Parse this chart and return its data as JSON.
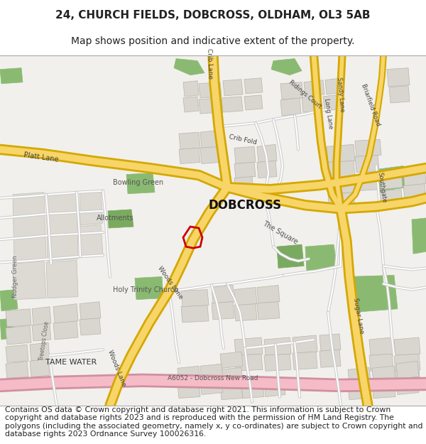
{
  "title_line1": "24, CHURCH FIELDS, DOBCROSS, OLDHAM, OL3 5AB",
  "title_line2": "Map shows position and indicative extent of the property.",
  "footer_text": "Contains OS data © Crown copyright and database right 2021. This information is subject to Crown copyright and database rights 2023 and is reproduced with the permission of HM Land Registry. The polygons (including the associated geometry, namely x, y co-ordinates) are subject to Crown copyright and database rights 2023 Ordnance Survey 100026316.",
  "map_bg": "#f2f0ec",
  "road_yellow_fill": "#f7d568",
  "road_yellow_border": "#d4a800",
  "road_minor_fill": "#ffffff",
  "road_minor_border": "#cccccc",
  "building_color": "#d9d6cf",
  "building_stroke": "#b8b5ae",
  "green_dark": "#8aba72",
  "green_mid": "#7aaa60",
  "pink_road_fill": "#f5bcc8",
  "pink_road_border": "#d090a0",
  "red_outline": "#cc0000",
  "text_dark": "#222222",
  "text_label": "#555555",
  "text_road": "#444444",
  "title_fontsize": 11,
  "subtitle_fontsize": 10,
  "footer_fontsize": 7.8
}
